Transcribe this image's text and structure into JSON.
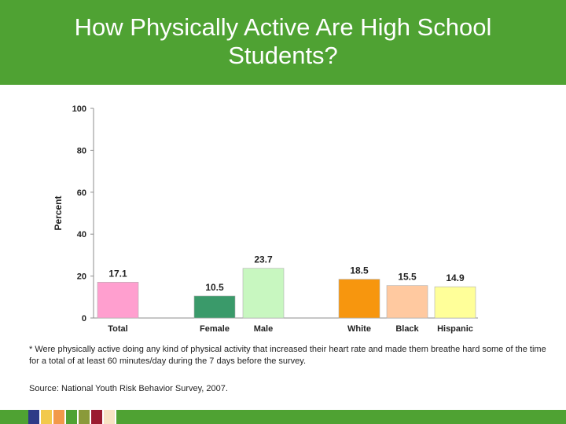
{
  "header": {
    "title_line1": "How Physically Active Are High School",
    "title_line2": "Students?"
  },
  "chart_data": {
    "type": "bar",
    "categories": [
      "Total",
      "Female",
      "Male",
      "White",
      "Black",
      "Hispanic"
    ],
    "values": [
      17.1,
      10.5,
      23.7,
      18.5,
      15.5,
      14.9
    ],
    "value_labels": [
      "17.1",
      "10.5",
      "23.7",
      "18.5",
      "15.5",
      "14.9"
    ],
    "bar_colors": [
      "#ff9fcf",
      "#3a9a6a",
      "#c8f7c0",
      "#f7960e",
      "#ffc9a0",
      "#ffff99"
    ],
    "ylabel": "Percent",
    "xlabel": "",
    "ylim": [
      0,
      100
    ],
    "yticks": [
      0,
      20,
      40,
      60,
      80,
      100
    ],
    "ytick_labels": [
      "0",
      "20",
      "40",
      "60",
      "80",
      "100"
    ],
    "grid": false
  },
  "notes": {
    "footnote": "* Were physically active doing any kind of physical activity that increased their heart rate and made them breathe hard some of the time for a total of at least 60 minutes/day during the 7 days before the survey.",
    "source": "Source: National Youth Risk Behavior Survey, 2007."
  },
  "theme": {
    "green": "#4fa233",
    "swatch_colors": [
      "#2e3a87",
      "#f2c94c",
      "#f2994a",
      "#4fa233",
      "#8a9a3a",
      "#9b1b30",
      "#f7e3c4"
    ]
  }
}
